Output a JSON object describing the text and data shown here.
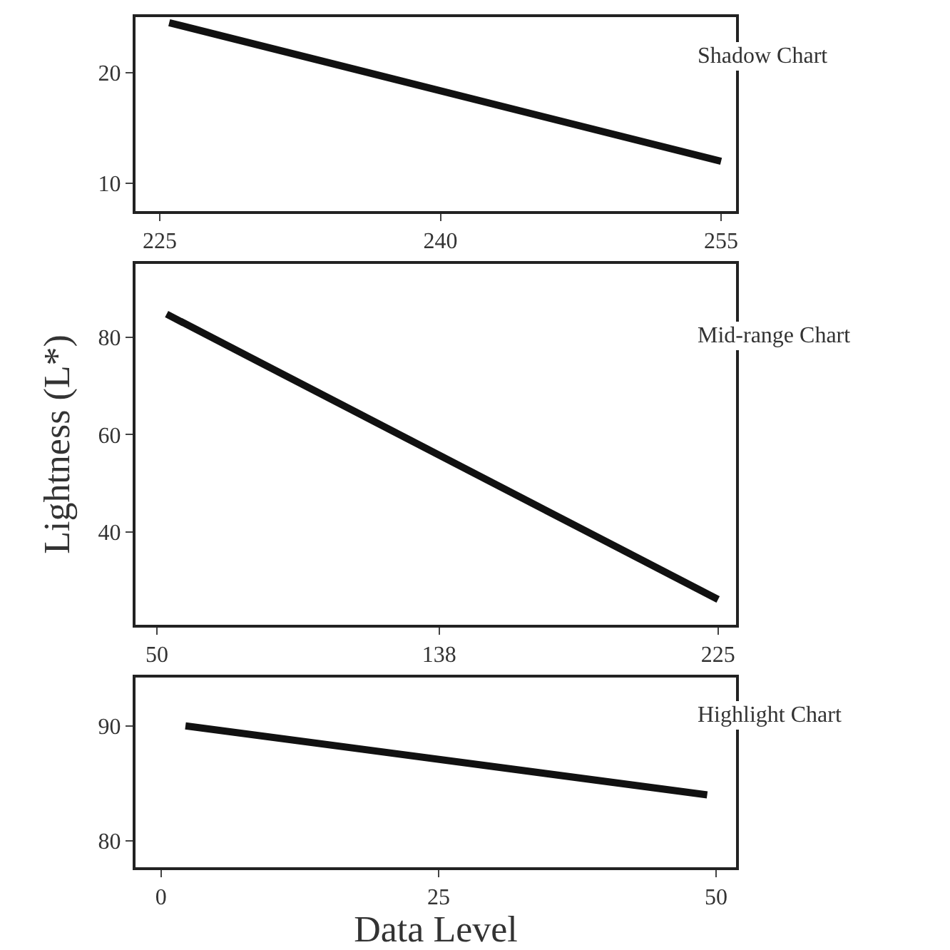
{
  "chart_data": [
    {
      "type": "line",
      "x": [
        225.5,
        255
      ],
      "series": [
        {
          "color": "#111111",
          "values": [
            24.5,
            12
          ]
        }
      ],
      "xlim": [
        223.7,
        255.8
      ],
      "xticks": [
        225,
        240,
        255
      ],
      "ylim": [
        7.5,
        25
      ],
      "yticks": [
        10,
        20
      ],
      "annotations": [
        "Shadow Chart"
      ]
    },
    {
      "type": "line",
      "x": [
        53,
        225
      ],
      "series": [
        {
          "color": "#111111",
          "values": [
            84.7,
            26.2
          ]
        }
      ],
      "xlim": [
        43.3,
        230.6
      ],
      "xticks": [
        50,
        138,
        225
      ],
      "ylim": [
        21,
        95
      ],
      "yticks": [
        40,
        60,
        80
      ],
      "ylabel": "Lightness (L*)",
      "annotations": [
        "Mid-range Chart"
      ]
    },
    {
      "type": "line",
      "x": [
        2.2,
        49.2
      ],
      "series": [
        {
          "color": "#111111",
          "values": [
            90,
            84
          ]
        }
      ],
      "xlim": [
        -2.3,
        51.8
      ],
      "xticks": [
        0,
        25,
        50
      ],
      "ylim": [
        77.7,
        94.2
      ],
      "yticks": [
        80,
        90
      ],
      "xlabel": "Data Level",
      "annotations": [
        "Highlight Chart"
      ]
    }
  ]
}
